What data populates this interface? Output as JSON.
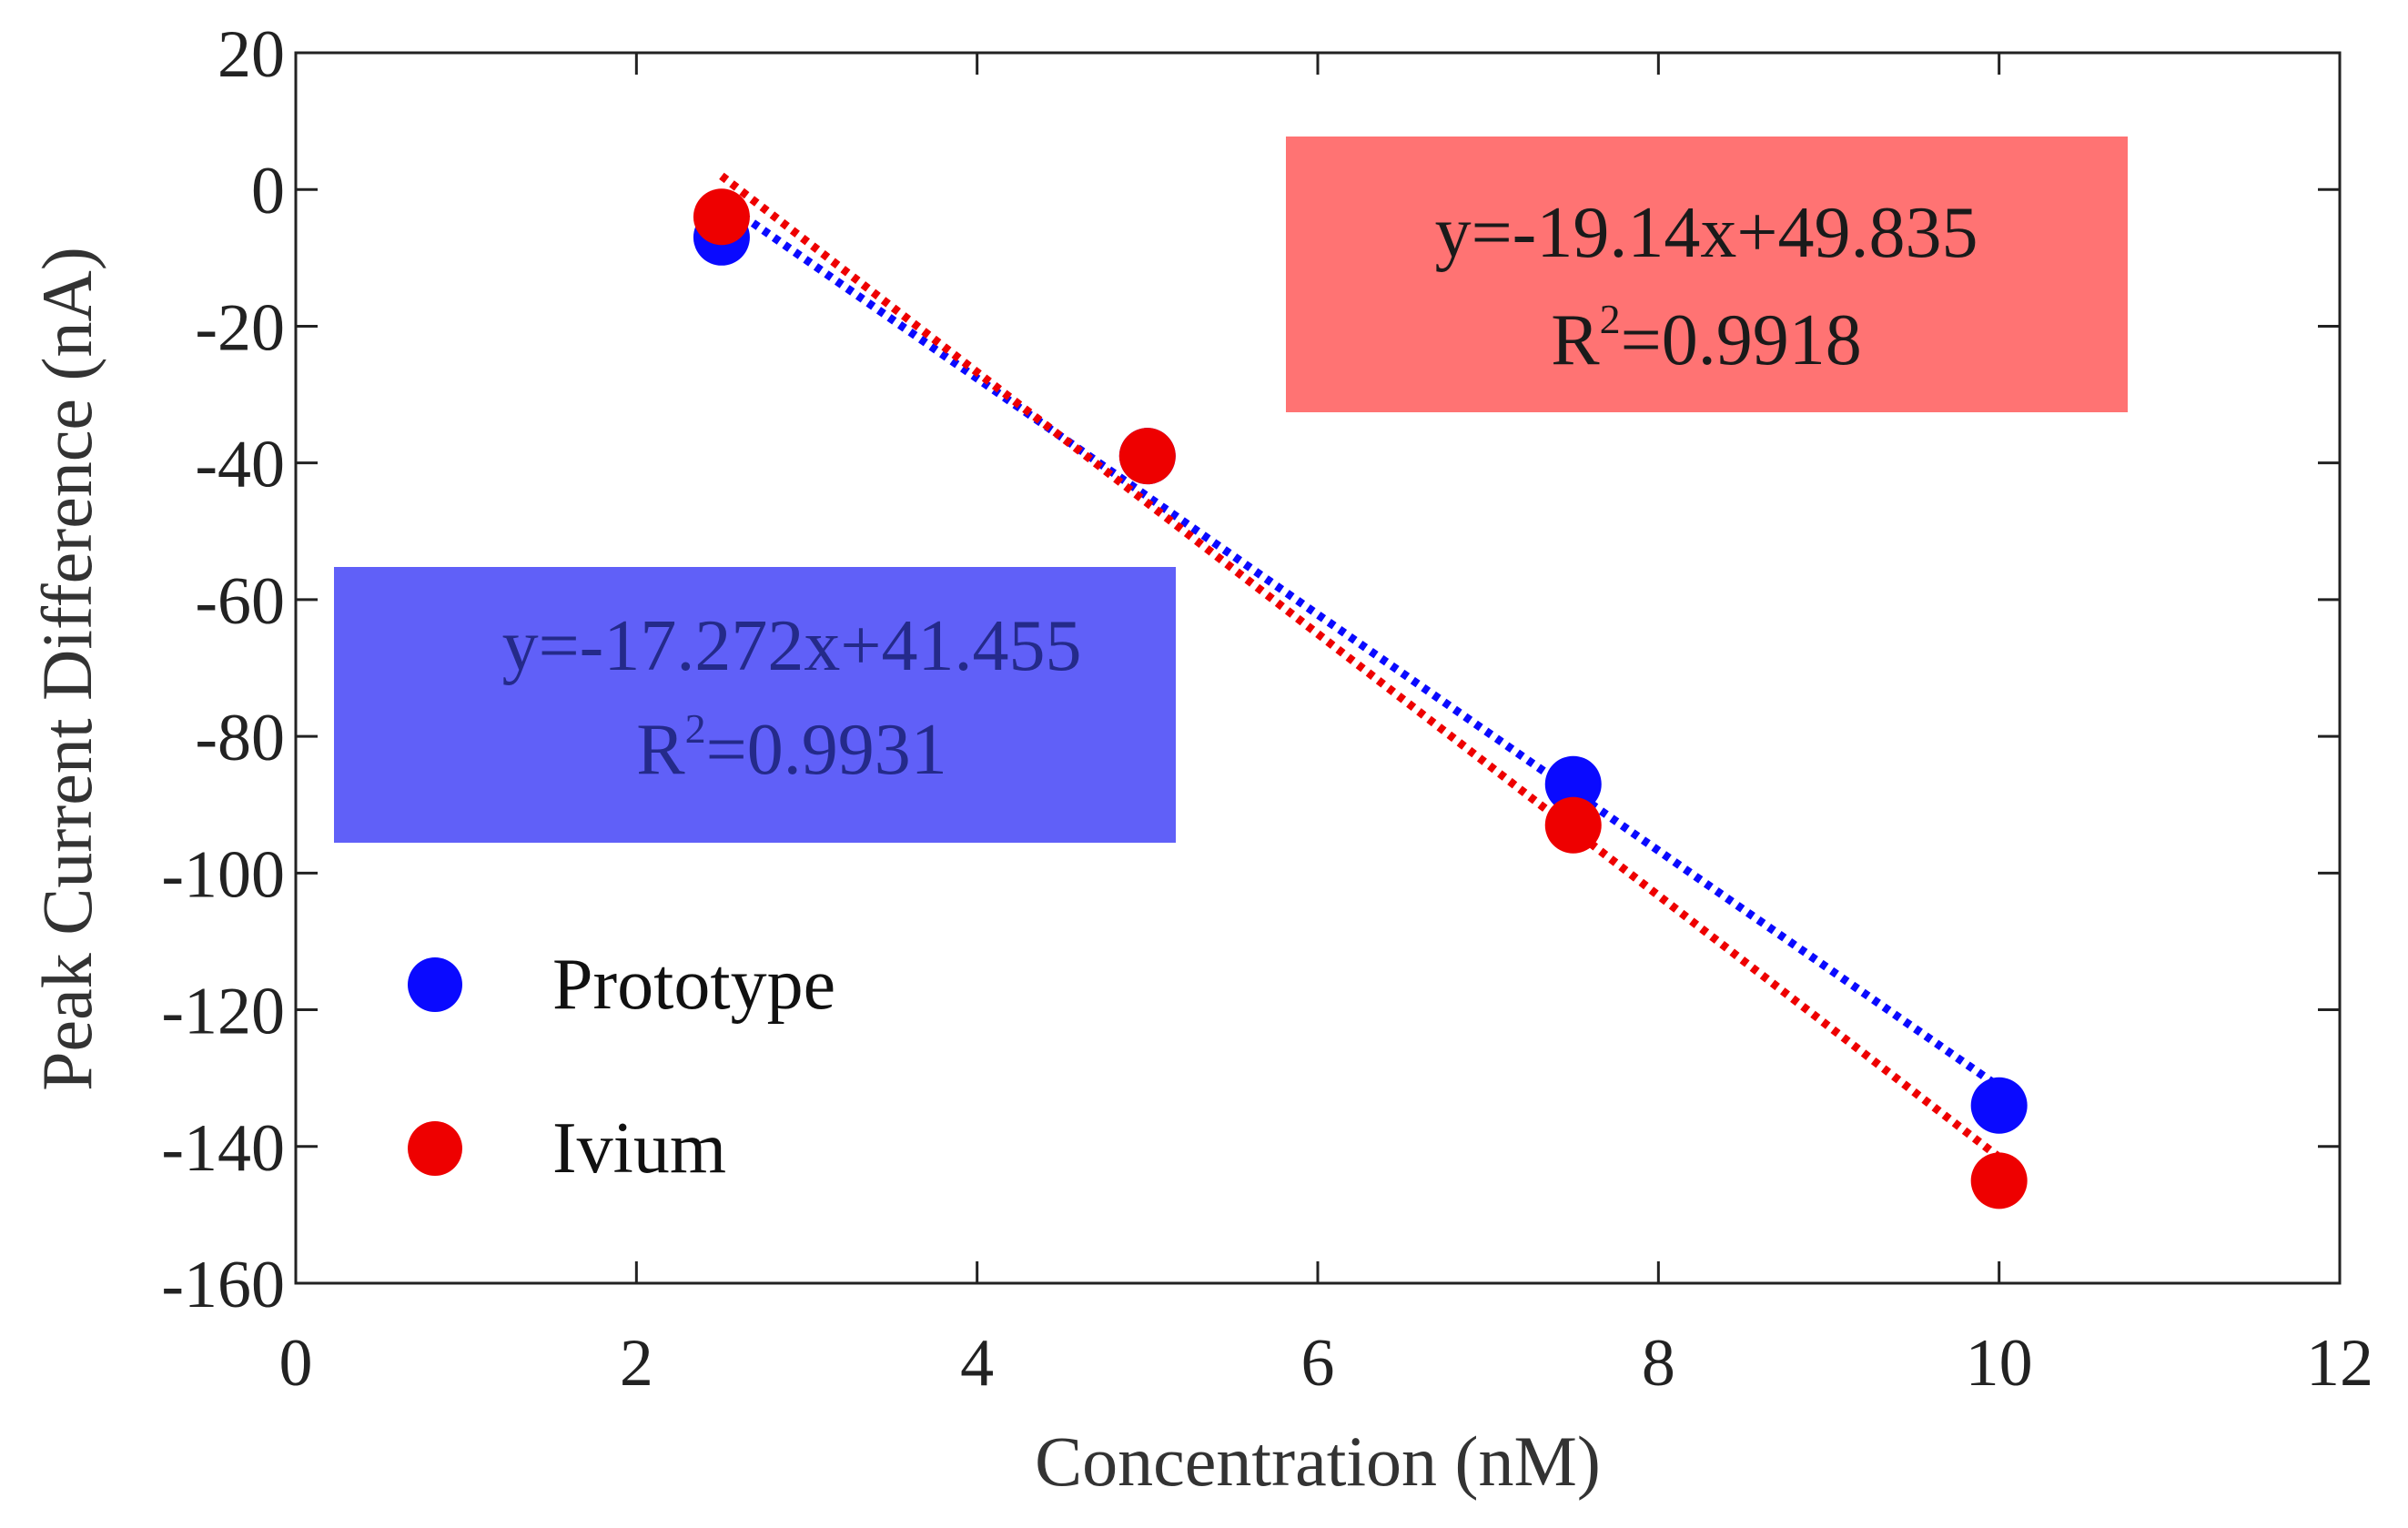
{
  "chart_data": {
    "type": "scatter",
    "title": "",
    "xlabel": "Concentration (nM)",
    "ylabel": "Peak Current Difference (nA)",
    "xlim": [
      0,
      12
    ],
    "ylim": [
      -160,
      20
    ],
    "xticks": [
      0,
      2,
      4,
      6,
      8,
      10,
      12
    ],
    "yticks": [
      20,
      0,
      -20,
      -40,
      -60,
      -80,
      -100,
      -120,
      -140,
      -160
    ],
    "grid": false,
    "legend_position": "bottom-left",
    "series": [
      {
        "name": "Prototype",
        "color": "#0a0aff",
        "x": [
          2.5,
          5,
          7.5,
          10
        ],
        "y": [
          -7,
          -39,
          -87,
          -134
        ],
        "trendline": {
          "slope": -17.272,
          "intercept": 41.455,
          "x_range": [
            2.5,
            10
          ],
          "style": "dotted"
        },
        "equation": {
          "line1": "y=-17.272x+41.455",
          "r2_prefix": "R",
          "r2_sup": "2",
          "r2_value": "=0.9931",
          "box_color": "#6060f8",
          "text_color": "#242a8a"
        }
      },
      {
        "name": "Ivium",
        "color": "#ee0000",
        "x": [
          2.5,
          5,
          7.5,
          10
        ],
        "y": [
          -4,
          -39,
          -93,
          -145
        ],
        "trendline": {
          "slope": -19.14,
          "intercept": 49.835,
          "x_range": [
            2.5,
            10
          ],
          "style": "dotted"
        },
        "equation": {
          "line1": "y=-19.14x+49.835",
          "r2_prefix": "R",
          "r2_sup": "2",
          "r2_value": "=0.9918",
          "box_color": "#ff7373",
          "text_color": "#1a1a1a"
        }
      }
    ]
  }
}
